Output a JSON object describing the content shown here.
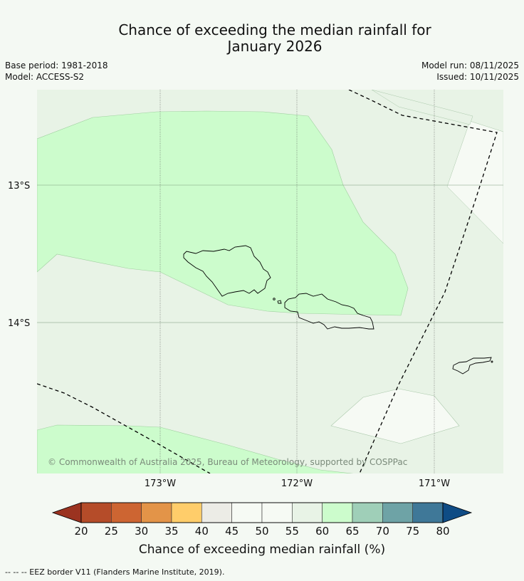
{
  "header": {
    "title_line1": "Chance of exceeding the median rainfall for",
    "title_line2": "January 2026",
    "base_period": "Base period: 1981-2018",
    "model": "Model: ACCESS-S2",
    "model_run": "Model run: 08/11/2025",
    "issued": "Issued: 10/11/2025"
  },
  "map": {
    "lat_labels": [
      "13°S",
      "14°S"
    ],
    "lon_labels": [
      "173°W",
      "172°W",
      "171°W"
    ],
    "copyright": "© Commonwealth of Australia 2025, Bureau of Meteorology, supported by COSPPac",
    "colors": {
      "bin_45_50": "#f6faf4",
      "bin_55_60": "#e8f3e6",
      "bin_60_65": "#ccfccc",
      "gridline": "#555555",
      "island_outline": "#000000",
      "eez_line": "#000000"
    }
  },
  "colorbar": {
    "ticks": [
      "20",
      "25",
      "30",
      "35",
      "40",
      "45",
      "50",
      "55",
      "60",
      "65",
      "70",
      "75",
      "80"
    ],
    "colors": [
      "#9b3320",
      "#b54c29",
      "#cd6532",
      "#e39448",
      "#ffcd6a",
      "#ecece6",
      "#f6faf4",
      "#f6faf4",
      "#e8f3e6",
      "#ccfccc",
      "#9fcfb8",
      "#6ea3a6",
      "#3f7898",
      "#0f4c85"
    ],
    "label": "Chance of exceeding median rainfall (%)"
  },
  "footnote": "--  --  -- EEZ border V11 (Flanders Marine Institute, 2019)."
}
